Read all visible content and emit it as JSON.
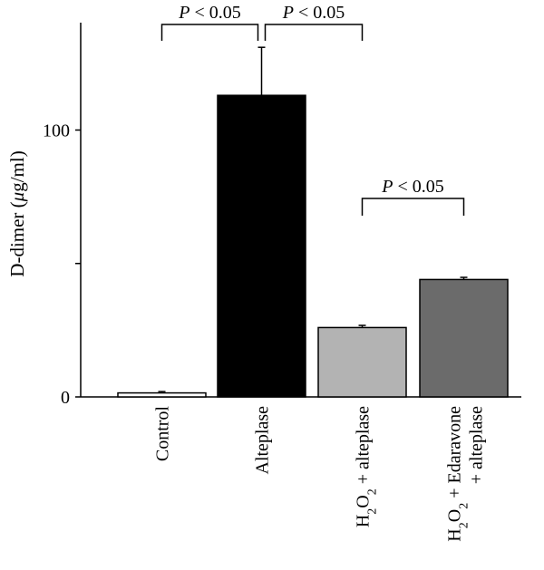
{
  "chart_data": {
    "type": "bar",
    "ylabel": "D-dimer (μg/ml)",
    "ylim": [
      0,
      150
    ],
    "yticks": [
      {
        "value": 0,
        "label": "0"
      },
      {
        "value": 50,
        "label": ""
      },
      {
        "value": 100,
        "label": "100"
      },
      {
        "value": 150,
        "label": ""
      }
    ],
    "categories": [
      {
        "id": "control",
        "label": "Control",
        "value": 1.5,
        "error": 0.5,
        "color": "#ffffff"
      },
      {
        "id": "alteplase",
        "label": "Alteplase",
        "value": 113,
        "error": 18,
        "color": "#000000"
      },
      {
        "id": "h2o2-alteplase",
        "label": "H2O2 + alteplase",
        "value": 26,
        "error": 0.8,
        "color": "#b3b3b3"
      },
      {
        "id": "h2o2-edaravone-alteplase",
        "label": "H2O2 + Edaravone + alteplase",
        "value": 44,
        "error": 0.8,
        "color": "#6b6b6b"
      }
    ],
    "significance": [
      {
        "from": 0,
        "to": 1,
        "label": "P < 0.05"
      },
      {
        "from": 1,
        "to": 2,
        "label": "P < 0.05"
      },
      {
        "from": 2,
        "to": 3,
        "label": "P < 0.05"
      }
    ]
  }
}
